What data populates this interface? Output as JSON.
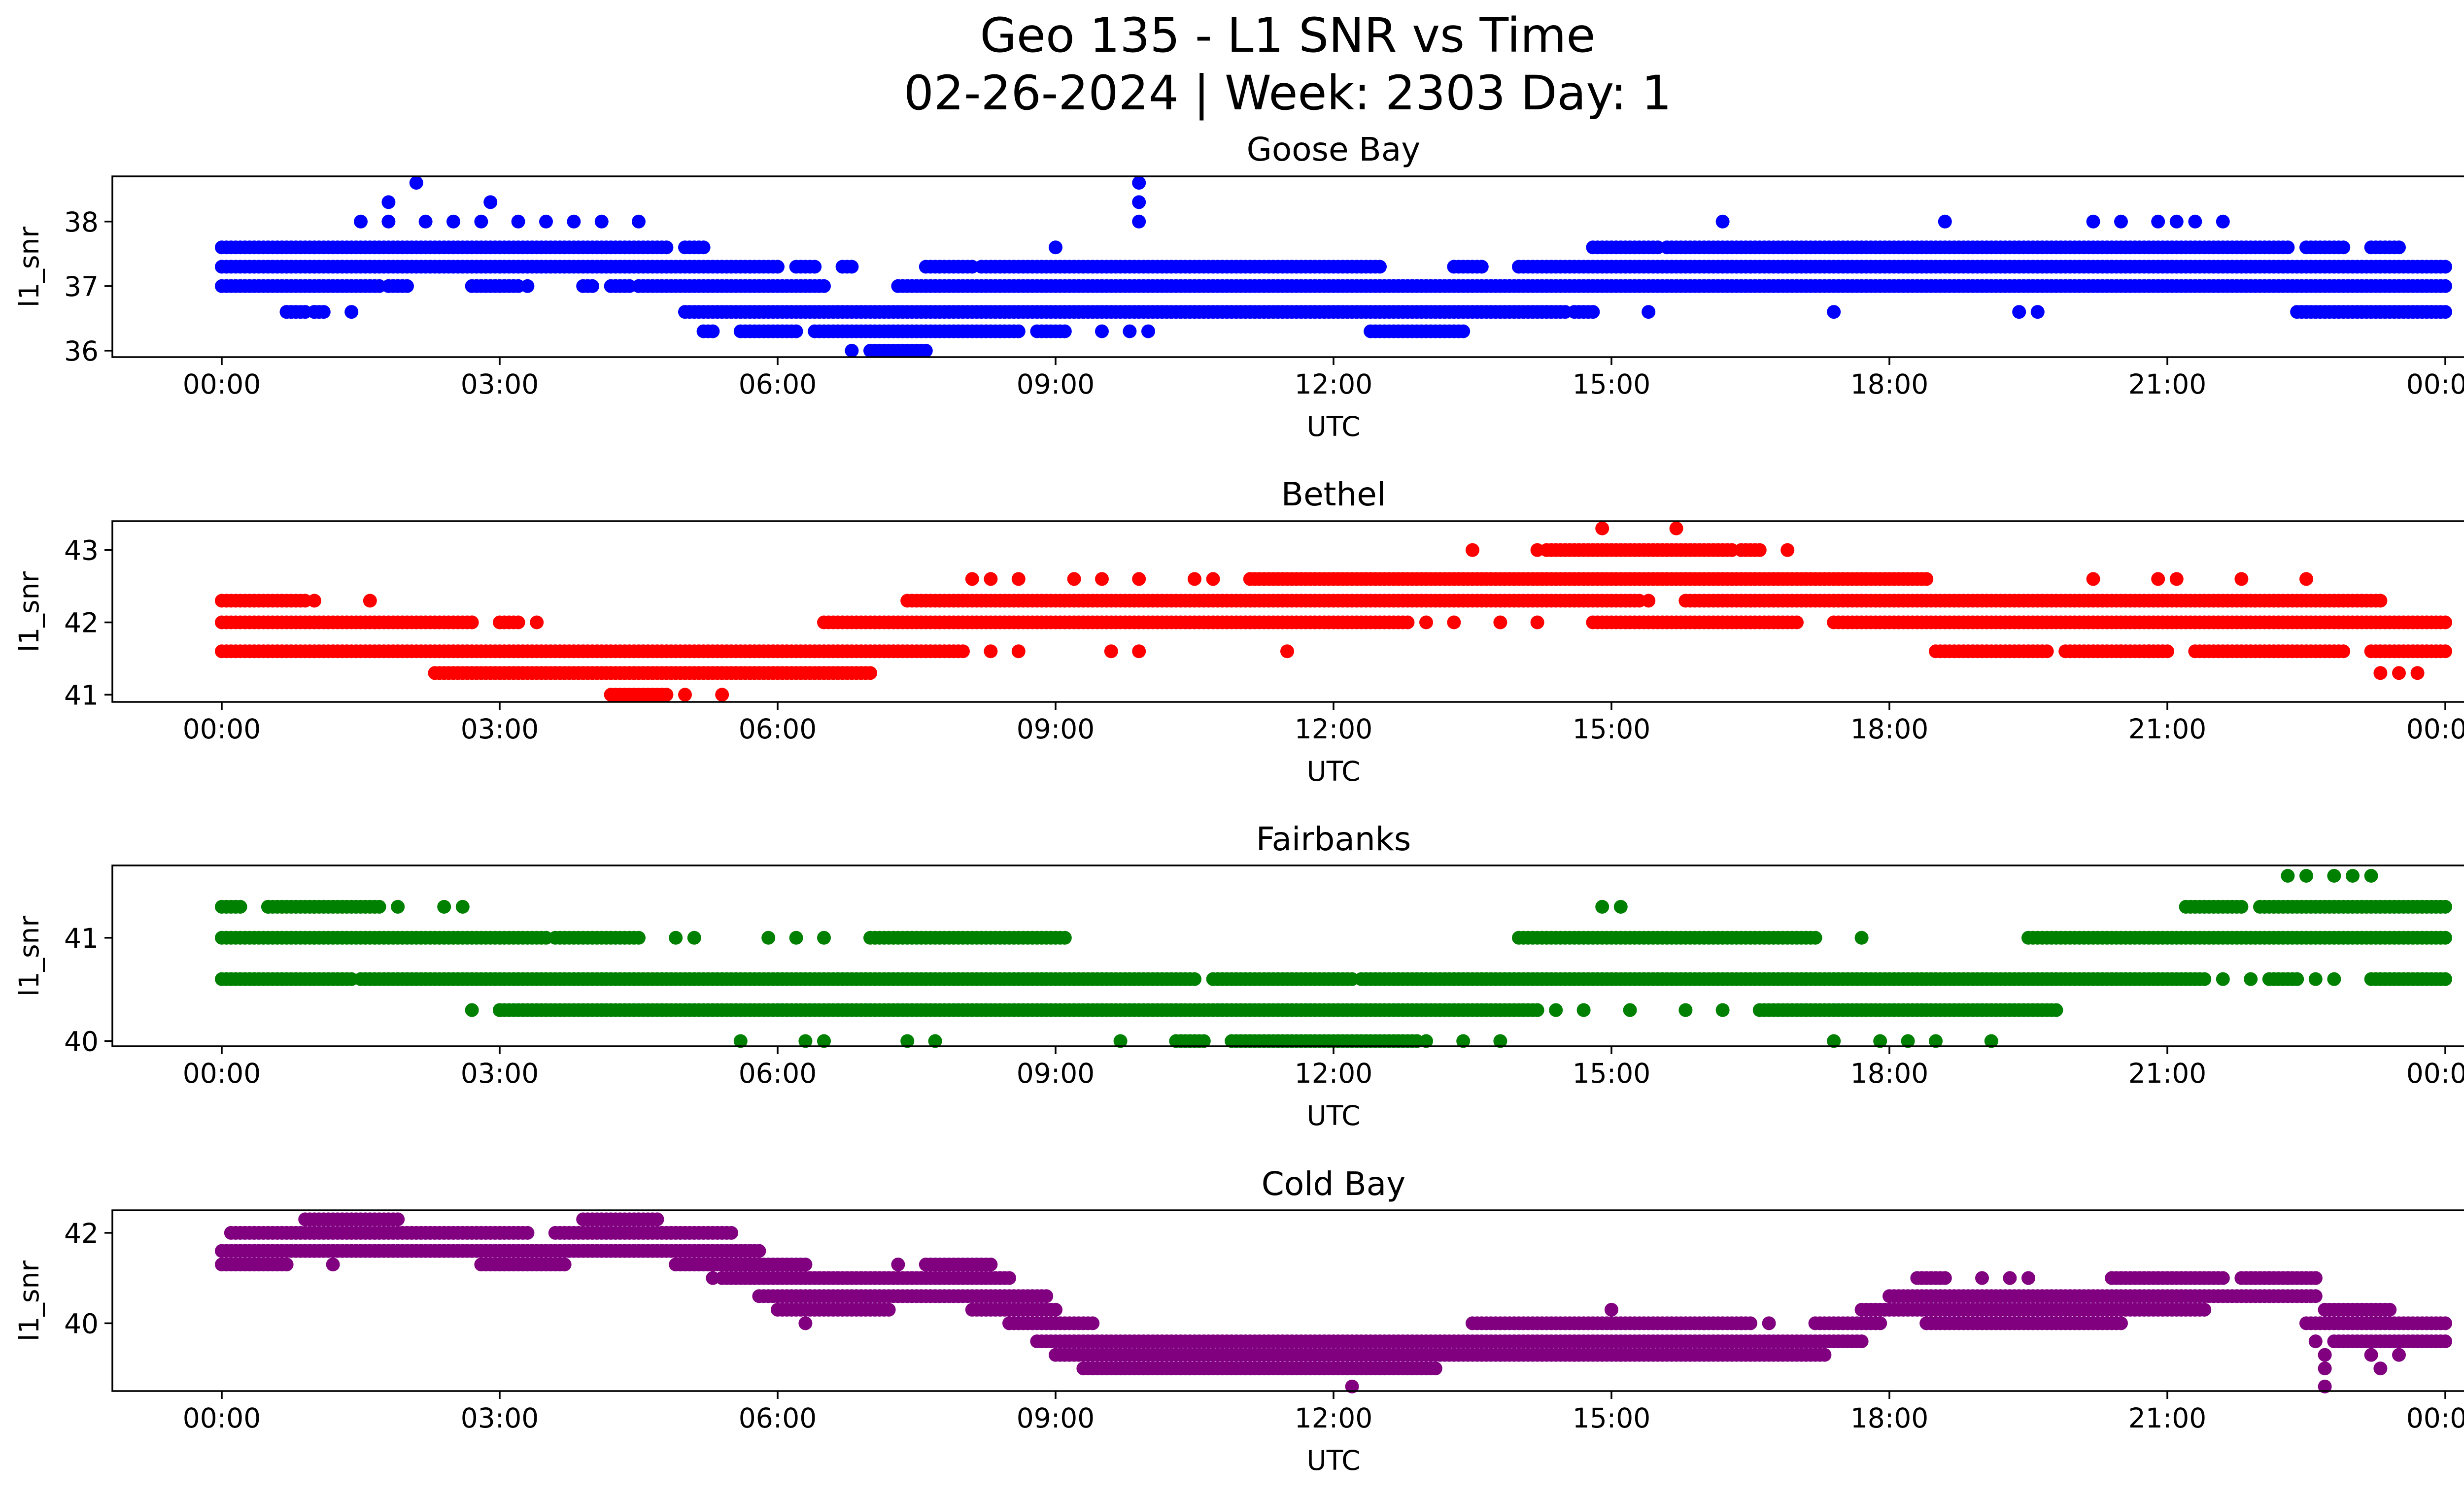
{
  "figure": {
    "title_line1": "Geo 135 - L1 SNR vs Time",
    "title_line2": "02-26-2024 | Week: 2303 Day: 1"
  },
  "chart_data": [
    {
      "type": "scatter",
      "title": "Goose Bay",
      "xlabel": "UTC",
      "ylabel": "l1_snr",
      "color": "#0000ff",
      "xlim": [
        0,
        24
      ],
      "ylim": [
        35.9,
        38.7
      ],
      "x_ticks": [
        "00:00",
        "03:00",
        "06:00",
        "09:00",
        "12:00",
        "15:00",
        "18:00",
        "21:00",
        "00:00"
      ],
      "y_ticks": [
        36,
        37,
        38
      ],
      "bands": [
        {
          "y": 37.6,
          "ranges": [
            [
              0.0,
              4.8
            ],
            [
              5.0,
              5.2
            ],
            [
              14.8,
              15.5
            ],
            [
              15.6,
              22.3
            ],
            [
              22.5,
              22.9
            ],
            [
              23.2,
              23.5
            ]
          ]
        },
        {
          "y": 37.3,
          "ranges": [
            [
              0.0,
              6.0
            ],
            [
              6.2,
              6.4
            ],
            [
              6.7,
              6.8
            ],
            [
              7.6,
              8.1
            ],
            [
              8.2,
              12.5
            ],
            [
              13.3,
              13.6
            ],
            [
              14.0,
              24.0
            ]
          ]
        },
        {
          "y": 37.0,
          "ranges": [
            [
              0.0,
              1.7
            ],
            [
              1.8,
              2.0
            ],
            [
              2.7,
              3.2
            ],
            [
              3.9,
              4.0
            ],
            [
              4.2,
              4.4
            ],
            [
              4.5,
              6.5
            ],
            [
              7.3,
              24.0
            ]
          ]
        },
        {
          "y": 36.6,
          "ranges": [
            [
              0.7,
              0.9
            ],
            [
              1.0,
              1.1
            ],
            [
              5.0,
              14.5
            ],
            [
              14.6,
              14.8
            ],
            [
              22.4,
              24.0
            ]
          ]
        },
        {
          "y": 36.3,
          "ranges": [
            [
              5.2,
              5.3
            ],
            [
              5.6,
              6.2
            ],
            [
              6.4,
              8.6
            ],
            [
              8.8,
              9.1
            ],
            [
              12.4,
              13.4
            ]
          ]
        },
        {
          "y": 36.0,
          "ranges": [
            [
              7.0,
              7.6
            ]
          ]
        }
      ],
      "points": [
        {
          "x": 0.7,
          "y": 36.6
        },
        {
          "x": 1.0,
          "y": 36.6
        },
        {
          "x": 1.4,
          "y": 36.6
        },
        {
          "x": 1.5,
          "y": 38.0
        },
        {
          "x": 1.8,
          "y": 38.0
        },
        {
          "x": 1.8,
          "y": 38.3
        },
        {
          "x": 2.1,
          "y": 38.6
        },
        {
          "x": 2.2,
          "y": 38.0
        },
        {
          "x": 2.5,
          "y": 38.0
        },
        {
          "x": 2.8,
          "y": 38.0
        },
        {
          "x": 2.9,
          "y": 38.3
        },
        {
          "x": 3.2,
          "y": 38.0
        },
        {
          "x": 3.5,
          "y": 38.0
        },
        {
          "x": 3.8,
          "y": 38.0
        },
        {
          "x": 4.1,
          "y": 38.0
        },
        {
          "x": 4.5,
          "y": 38.0
        },
        {
          "x": 3.3,
          "y": 37.0
        },
        {
          "x": 6.8,
          "y": 36.0
        },
        {
          "x": 9.0,
          "y": 37.6
        },
        {
          "x": 9.5,
          "y": 36.3
        },
        {
          "x": 9.8,
          "y": 36.3
        },
        {
          "x": 10.0,
          "y": 36.3
        },
        {
          "x": 9.9,
          "y": 38.0
        },
        {
          "x": 9.9,
          "y": 38.3
        },
        {
          "x": 9.9,
          "y": 38.6
        },
        {
          "x": 15.4,
          "y": 36.6
        },
        {
          "x": 16.2,
          "y": 38.0
        },
        {
          "x": 17.4,
          "y": 36.6
        },
        {
          "x": 18.6,
          "y": 38.0
        },
        {
          "x": 19.4,
          "y": 36.6
        },
        {
          "x": 19.6,
          "y": 36.6
        },
        {
          "x": 20.2,
          "y": 38.0
        },
        {
          "x": 20.5,
          "y": 38.0
        },
        {
          "x": 20.9,
          "y": 38.0
        },
        {
          "x": 21.1,
          "y": 38.0
        },
        {
          "x": 21.3,
          "y": 38.0
        },
        {
          "x": 21.6,
          "y": 38.0
        }
      ]
    },
    {
      "type": "scatter",
      "title": "Bethel",
      "xlabel": "UTC",
      "ylabel": "l1_snr",
      "color": "#ff0000",
      "xlim": [
        0,
        24
      ],
      "ylim": [
        40.9,
        43.4
      ],
      "x_ticks": [
        "00:00",
        "03:00",
        "06:00",
        "09:00",
        "12:00",
        "15:00",
        "18:00",
        "21:00",
        "00:00"
      ],
      "y_ticks": [
        41,
        42,
        43
      ],
      "bands": [
        {
          "y": 43.0,
          "ranges": [
            [
              14.3,
              16.3
            ],
            [
              16.4,
              16.6
            ]
          ]
        },
        {
          "y": 42.6,
          "ranges": [
            [
              11.1,
              18.4
            ]
          ]
        },
        {
          "y": 42.3,
          "ranges": [
            [
              0.0,
              0.9
            ],
            [
              7.4,
              15.3
            ],
            [
              15.8,
              23.3
            ]
          ]
        },
        {
          "y": 42.0,
          "ranges": [
            [
              0.0,
              2.7
            ],
            [
              3.0,
              3.2
            ],
            [
              6.5,
              12.8
            ],
            [
              14.8,
              17.0
            ],
            [
              17.4,
              24.0
            ]
          ]
        },
        {
          "y": 41.6,
          "ranges": [
            [
              0.0,
              8.0
            ],
            [
              18.5,
              19.7
            ],
            [
              19.9,
              21.0
            ],
            [
              21.3,
              22.9
            ],
            [
              23.2,
              24.0
            ]
          ]
        },
        {
          "y": 41.3,
          "ranges": [
            [
              2.3,
              7.0
            ]
          ]
        },
        {
          "y": 41.0,
          "ranges": [
            [
              4.2,
              4.8
            ]
          ]
        }
      ],
      "points": [
        {
          "x": 1.0,
          "y": 42.3
        },
        {
          "x": 1.6,
          "y": 42.3
        },
        {
          "x": 2.7,
          "y": 42.0
        },
        {
          "x": 3.4,
          "y": 42.0
        },
        {
          "x": 5.0,
          "y": 41.0
        },
        {
          "x": 5.4,
          "y": 41.0
        },
        {
          "x": 8.1,
          "y": 42.6
        },
        {
          "x": 8.3,
          "y": 42.6
        },
        {
          "x": 8.6,
          "y": 42.6
        },
        {
          "x": 9.2,
          "y": 42.6
        },
        {
          "x": 9.5,
          "y": 42.6
        },
        {
          "x": 9.9,
          "y": 42.6
        },
        {
          "x": 10.5,
          "y": 42.6
        },
        {
          "x": 10.7,
          "y": 42.6
        },
        {
          "x": 8.3,
          "y": 41.6
        },
        {
          "x": 8.6,
          "y": 41.6
        },
        {
          "x": 9.6,
          "y": 41.6
        },
        {
          "x": 9.9,
          "y": 41.6
        },
        {
          "x": 11.5,
          "y": 41.6
        },
        {
          "x": 13.0,
          "y": 42.0
        },
        {
          "x": 13.3,
          "y": 42.0
        },
        {
          "x": 13.8,
          "y": 42.0
        },
        {
          "x": 14.2,
          "y": 42.0
        },
        {
          "x": 13.5,
          "y": 43.0
        },
        {
          "x": 14.2,
          "y": 43.0
        },
        {
          "x": 14.9,
          "y": 43.3
        },
        {
          "x": 15.7,
          "y": 43.3
        },
        {
          "x": 16.9,
          "y": 43.0
        },
        {
          "x": 15.4,
          "y": 42.3
        },
        {
          "x": 20.2,
          "y": 42.6
        },
        {
          "x": 20.9,
          "y": 42.6
        },
        {
          "x": 21.1,
          "y": 42.6
        },
        {
          "x": 21.8,
          "y": 42.6
        },
        {
          "x": 22.5,
          "y": 42.6
        },
        {
          "x": 20.5,
          "y": 41.6
        },
        {
          "x": 20.8,
          "y": 41.6
        },
        {
          "x": 23.3,
          "y": 41.3
        },
        {
          "x": 23.5,
          "y": 41.3
        },
        {
          "x": 23.7,
          "y": 41.3
        }
      ]
    },
    {
      "type": "scatter",
      "title": "Fairbanks",
      "xlabel": "UTC",
      "ylabel": "l1_snr",
      "color": "#008000",
      "xlim": [
        0,
        24
      ],
      "ylim": [
        39.95,
        41.7
      ],
      "x_ticks": [
        "00:00",
        "03:00",
        "06:00",
        "09:00",
        "12:00",
        "15:00",
        "18:00",
        "21:00",
        "00:00"
      ],
      "y_ticks": [
        40,
        41
      ],
      "bands": [
        {
          "y": 41.3,
          "ranges": [
            [
              0.0,
              0.2
            ],
            [
              0.5,
              1.7
            ],
            [
              21.2,
              21.8
            ],
            [
              22.0,
              24.0
            ]
          ]
        },
        {
          "y": 41.0,
          "ranges": [
            [
              0.0,
              3.5
            ],
            [
              3.6,
              4.5
            ],
            [
              7.0,
              9.1
            ],
            [
              14.0,
              17.2
            ],
            [
              19.5,
              24.0
            ]
          ]
        },
        {
          "y": 40.6,
          "ranges": [
            [
              0.0,
              1.4
            ],
            [
              1.5,
              10.5
            ],
            [
              10.7,
              12.2
            ],
            [
              12.3,
              21.4
            ],
            [
              22.1,
              22.4
            ],
            [
              23.2,
              24.0
            ]
          ]
        },
        {
          "y": 40.3,
          "ranges": [
            [
              3.0,
              14.2
            ],
            [
              16.6,
              19.8
            ]
          ]
        },
        {
          "y": 40.0,
          "ranges": [
            [
              10.3,
              10.6
            ],
            [
              10.9,
              12.9
            ]
          ]
        }
      ],
      "points": [
        {
          "x": 0.5,
          "y": 41.3
        },
        {
          "x": 1.9,
          "y": 41.3
        },
        {
          "x": 2.4,
          "y": 41.3
        },
        {
          "x": 2.6,
          "y": 41.3
        },
        {
          "x": 2.7,
          "y": 40.3
        },
        {
          "x": 3.0,
          "y": 40.3
        },
        {
          "x": 4.9,
          "y": 41.0
        },
        {
          "x": 5.1,
          "y": 41.0
        },
        {
          "x": 5.9,
          "y": 41.0
        },
        {
          "x": 6.2,
          "y": 41.0
        },
        {
          "x": 6.5,
          "y": 41.0
        },
        {
          "x": 5.6,
          "y": 40.0
        },
        {
          "x": 6.3,
          "y": 40.0
        },
        {
          "x": 6.5,
          "y": 40.0
        },
        {
          "x": 7.4,
          "y": 40.0
        },
        {
          "x": 7.7,
          "y": 40.0
        },
        {
          "x": 9.7,
          "y": 40.0
        },
        {
          "x": 13.0,
          "y": 40.0
        },
        {
          "x": 13.4,
          "y": 40.0
        },
        {
          "x": 13.8,
          "y": 40.0
        },
        {
          "x": 14.4,
          "y": 40.3
        },
        {
          "x": 14.7,
          "y": 40.3
        },
        {
          "x": 15.2,
          "y": 40.3
        },
        {
          "x": 15.8,
          "y": 40.3
        },
        {
          "x": 16.2,
          "y": 40.3
        },
        {
          "x": 14.9,
          "y": 41.3
        },
        {
          "x": 15.1,
          "y": 41.3
        },
        {
          "x": 17.7,
          "y": 41.0
        },
        {
          "x": 17.4,
          "y": 40.0
        },
        {
          "x": 17.9,
          "y": 40.0
        },
        {
          "x": 18.2,
          "y": 40.0
        },
        {
          "x": 18.5,
          "y": 40.0
        },
        {
          "x": 19.1,
          "y": 40.0
        },
        {
          "x": 22.3,
          "y": 41.6
        },
        {
          "x": 22.5,
          "y": 41.6
        },
        {
          "x": 22.8,
          "y": 41.6
        },
        {
          "x": 23.0,
          "y": 41.6
        },
        {
          "x": 23.2,
          "y": 41.6
        },
        {
          "x": 21.6,
          "y": 40.6
        },
        {
          "x": 21.9,
          "y": 40.6
        },
        {
          "x": 22.6,
          "y": 40.6
        },
        {
          "x": 22.8,
          "y": 40.6
        }
      ]
    },
    {
      "type": "scatter",
      "title": "Cold Bay",
      "xlabel": "UTC",
      "ylabel": "l1_snr",
      "color": "#800080",
      "xlim": [
        0,
        24
      ],
      "ylim": [
        38.5,
        42.5
      ],
      "x_ticks": [
        "00:00",
        "03:00",
        "06:00",
        "09:00",
        "12:00",
        "15:00",
        "18:00",
        "21:00",
        "00:00"
      ],
      "y_ticks": [
        40,
        42
      ],
      "bands": [
        {
          "y": 42.3,
          "ranges": [
            [
              0.9,
              1.9
            ],
            [
              3.9,
              4.7
            ]
          ]
        },
        {
          "y": 42.0,
          "ranges": [
            [
              0.1,
              3.3
            ],
            [
              3.6,
              5.5
            ]
          ]
        },
        {
          "y": 41.6,
          "ranges": [
            [
              0.0,
              5.8
            ]
          ]
        },
        {
          "y": 41.3,
          "ranges": [
            [
              0.0,
              0.7
            ],
            [
              2.8,
              3.7
            ],
            [
              4.9,
              6.3
            ],
            [
              7.6,
              8.3
            ]
          ]
        },
        {
          "y": 41.0,
          "ranges": [
            [
              5.4,
              8.5
            ],
            [
              18.3,
              18.6
            ],
            [
              20.4,
              21.6
            ],
            [
              21.8,
              22.6
            ]
          ]
        },
        {
          "y": 40.6,
          "ranges": [
            [
              5.8,
              8.9
            ],
            [
              18.0,
              22.6
            ]
          ]
        },
        {
          "y": 40.3,
          "ranges": [
            [
              6.0,
              7.2
            ],
            [
              8.1,
              9.0
            ],
            [
              17.7,
              21.4
            ],
            [
              22.7,
              23.4
            ]
          ]
        },
        {
          "y": 40.0,
          "ranges": [
            [
              8.5,
              9.4
            ],
            [
              13.5,
              16.5
            ],
            [
              17.2,
              17.9
            ],
            [
              18.4,
              20.5
            ],
            [
              22.5,
              24.0
            ]
          ]
        },
        {
          "y": 39.6,
          "ranges": [
            [
              8.8,
              17.7
            ],
            [
              22.8,
              24.0
            ]
          ]
        },
        {
          "y": 39.3,
          "ranges": [
            [
              9.0,
              17.3
            ]
          ]
        },
        {
          "y": 39.0,
          "ranges": [
            [
              9.3,
              13.1
            ]
          ]
        }
      ],
      "points": [
        {
          "x": 1.2,
          "y": 41.3
        },
        {
          "x": 4.5,
          "y": 42.3
        },
        {
          "x": 5.3,
          "y": 41.0
        },
        {
          "x": 6.3,
          "y": 40.0
        },
        {
          "x": 7.3,
          "y": 41.3
        },
        {
          "x": 12.2,
          "y": 38.6
        },
        {
          "x": 15.0,
          "y": 40.3
        },
        {
          "x": 16.0,
          "y": 40.0
        },
        {
          "x": 16.4,
          "y": 40.0
        },
        {
          "x": 16.7,
          "y": 40.0
        },
        {
          "x": 14.6,
          "y": 39.3
        },
        {
          "x": 15.1,
          "y": 39.3
        },
        {
          "x": 19.0,
          "y": 41.0
        },
        {
          "x": 19.3,
          "y": 41.0
        },
        {
          "x": 19.5,
          "y": 41.0
        },
        {
          "x": 21.9,
          "y": 41.0
        },
        {
          "x": 22.1,
          "y": 41.0
        },
        {
          "x": 22.3,
          "y": 41.0
        },
        {
          "x": 22.6,
          "y": 41.0
        },
        {
          "x": 22.6,
          "y": 39.6
        },
        {
          "x": 22.7,
          "y": 39.3
        },
        {
          "x": 22.7,
          "y": 39.0
        },
        {
          "x": 22.7,
          "y": 38.6
        },
        {
          "x": 23.2,
          "y": 39.3
        },
        {
          "x": 23.3,
          "y": 39.0
        },
        {
          "x": 23.5,
          "y": 39.3
        }
      ]
    }
  ]
}
